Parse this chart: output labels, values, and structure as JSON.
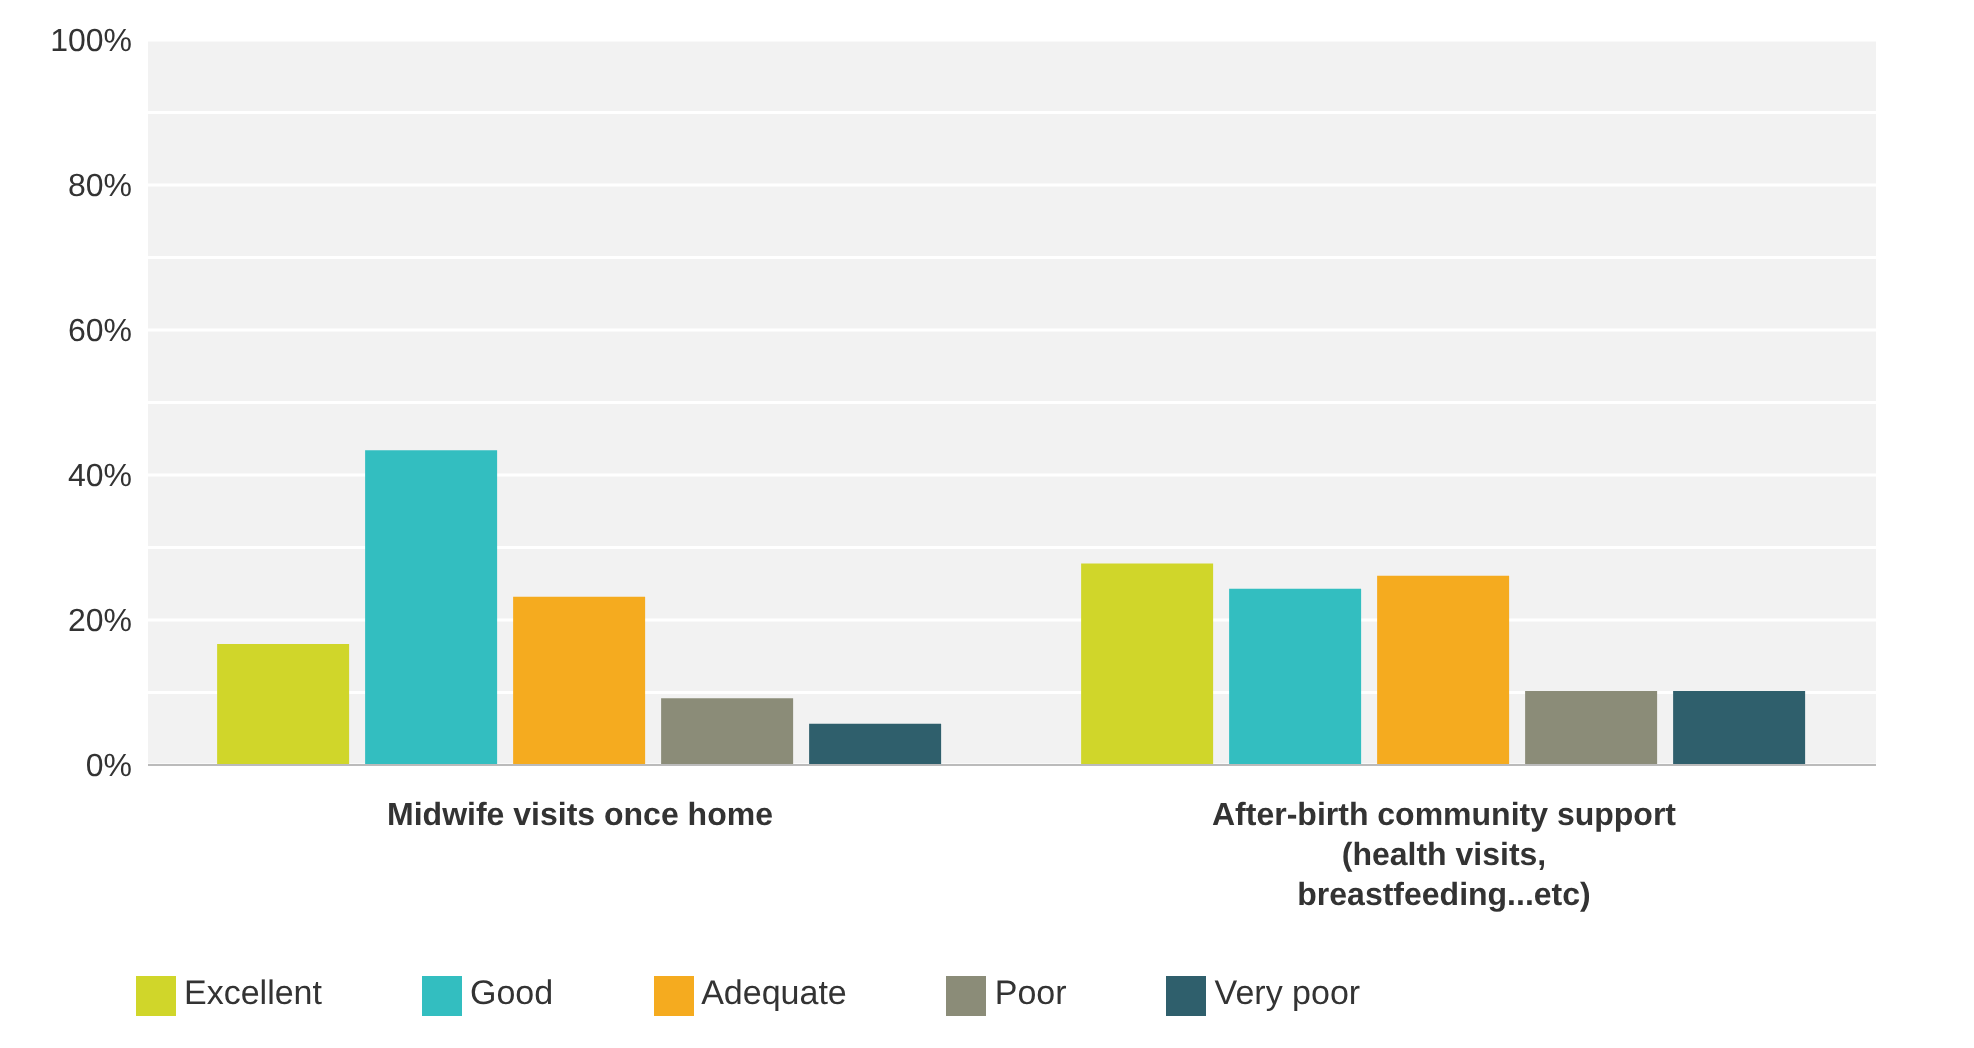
{
  "chart_data": {
    "type": "bar",
    "categories": [
      "Midwife visits once home",
      "After-birth community support (health visits, breastfeeding...etc)"
    ],
    "series": [
      {
        "name": "Excellent",
        "color": "#d0d62a",
        "values": [
          16.7,
          27.8
        ]
      },
      {
        "name": "Good",
        "color": "#33bec0",
        "values": [
          43.4,
          24.3
        ]
      },
      {
        "name": "Adequate",
        "color": "#f5ab1f",
        "values": [
          23.2,
          26.1
        ]
      },
      {
        "name": "Poor",
        "color": "#8b8c78",
        "values": [
          9.2,
          10.2
        ]
      },
      {
        "name": "Very poor",
        "color": "#2f5f6c",
        "values": [
          5.7,
          10.2
        ]
      }
    ],
    "ylim": [
      0,
      100
    ],
    "yticks": [
      {
        "value": 0,
        "label": "0%"
      },
      {
        "value": 10,
        "label": null
      },
      {
        "value": 20,
        "label": "20%"
      },
      {
        "value": 30,
        "label": null
      },
      {
        "value": 40,
        "label": "40%"
      },
      {
        "value": 50,
        "label": null
      },
      {
        "value": 60,
        "label": "60%"
      },
      {
        "value": 70,
        "label": null
      },
      {
        "value": 80,
        "label": "80%"
      },
      {
        "value": 90,
        "label": null
      },
      {
        "value": 100,
        "label": "100%"
      }
    ],
    "grid": "y",
    "legend": "bottom"
  }
}
